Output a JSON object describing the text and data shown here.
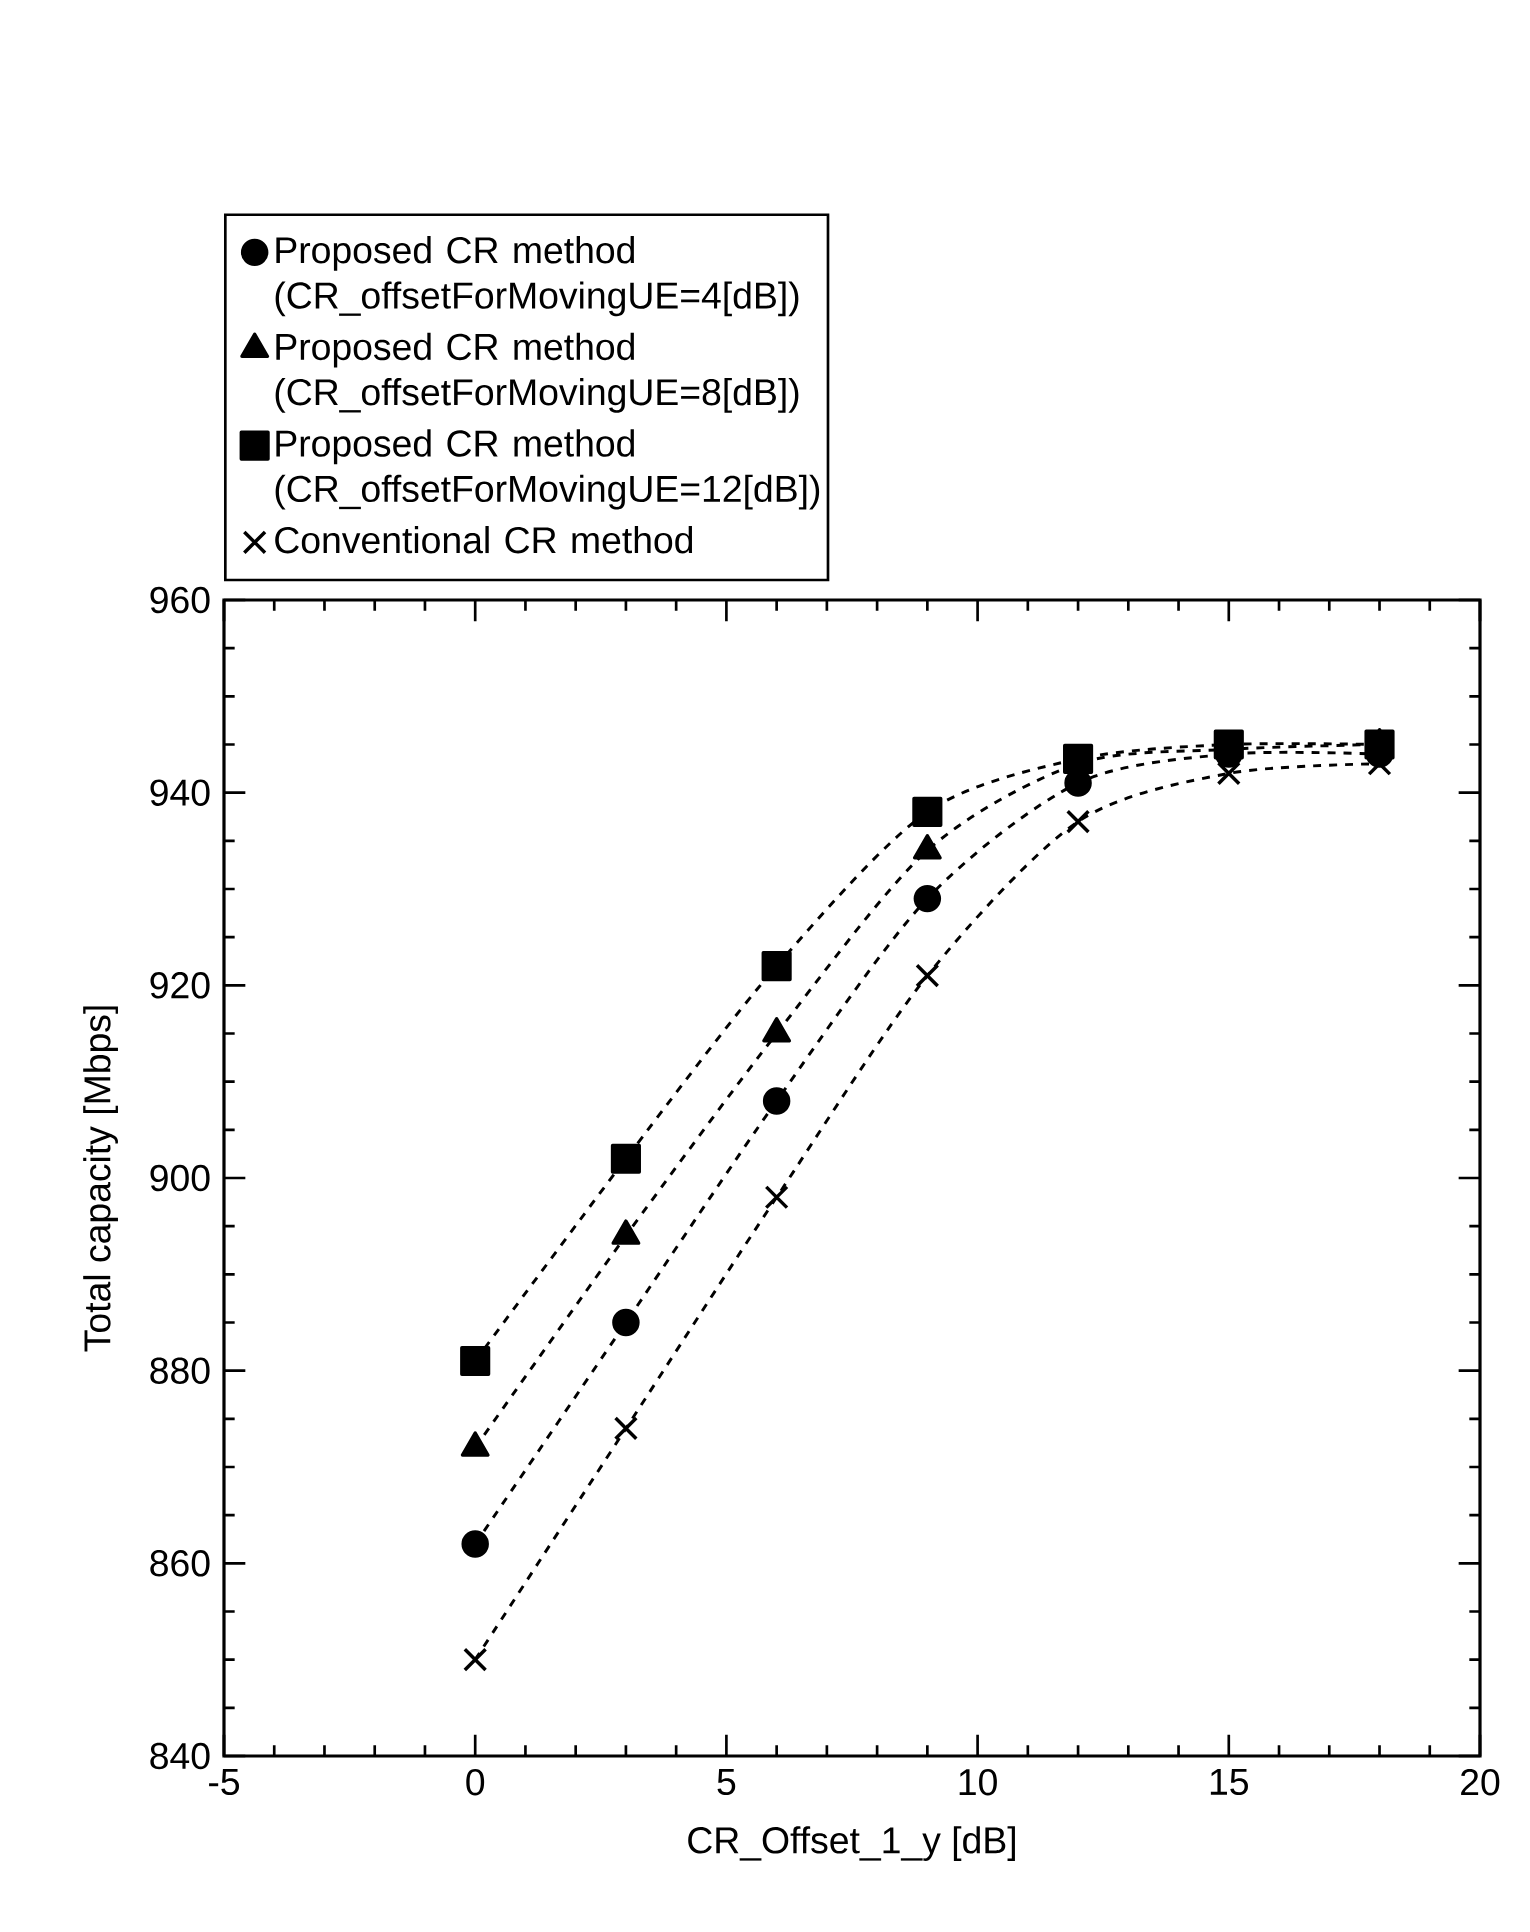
{
  "chart_data": {
    "type": "line",
    "xlabel": "CR_Offset_1_y [dB]",
    "ylabel": "Total capacity [Mbps]",
    "x": [
      0,
      3,
      6,
      9,
      12,
      15,
      18
    ],
    "xlim": [
      -5,
      20
    ],
    "xticks": [
      -5,
      0,
      5,
      10,
      15,
      20
    ],
    "ylim": [
      840,
      960
    ],
    "yticks": [
      840,
      860,
      880,
      900,
      920,
      940,
      960
    ],
    "legend": "top",
    "line_style": "dashed",
    "series": [
      {
        "name": "Proposed CR method (CR_offsetForMovingUE=4[dB])",
        "color": "#000000",
        "marker": "circle",
        "values": [
          862,
          885,
          908,
          929,
          941,
          944,
          944
        ]
      },
      {
        "name": "Proposed CR method (CR_offsetForMovingUE=8[dB])",
        "color": "#000000",
        "marker": "triangle",
        "values": [
          872,
          894,
          915,
          934,
          943,
          944.5,
          945
        ]
      },
      {
        "name": "Proposed CR method (CR_offsetForMovingUE=12[dB])",
        "color": "#000000",
        "marker": "square",
        "values": [
          881,
          902,
          922,
          938,
          943.5,
          945,
          945
        ]
      },
      {
        "name": "Conventional CR method",
        "color": "#000000",
        "marker": "cross",
        "values": [
          850,
          874,
          898,
          921,
          937,
          942,
          943
        ]
      }
    ]
  }
}
